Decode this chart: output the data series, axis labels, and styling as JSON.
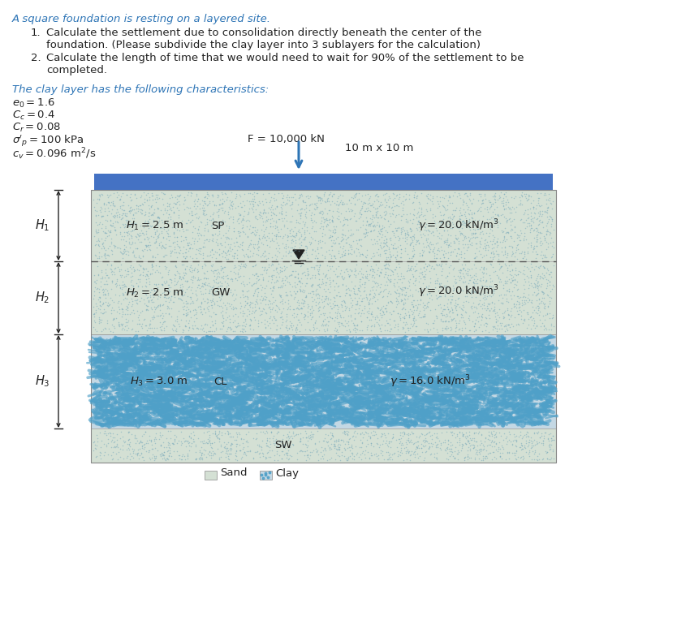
{
  "title_line": "A square foundation is resting on a layered site.",
  "item1": "Calculate the settlement due to consolidation directly beneath the center of the",
  "item1b": "foundation. (Please subdivide the clay layer into 3 sublayers for the calculation)",
  "item2": "Calculate the length of time that we would need to wait for 90% of the settlement to be",
  "item2b": "completed.",
  "clay_header": "The clay layer has the following characteristics:",
  "F_label": "F = 10,000 kN",
  "foundation_label": "10 m x 10 m",
  "SP_label": "SP",
  "GW_label": "GW",
  "CL_label": "CL",
  "SW_label": "SW",
  "H1_label": "H1 = 2.5 m",
  "H2_label": "H2 = 2.5 m",
  "H3_label": "H3 = 3.0 m",
  "gamma1": "y = 20.0 kN/m3",
  "gamma2": "y = 20.0 kN/m3",
  "gamma3": "y = 16.0 kN/m3",
  "sand_legend": "Sand",
  "clay_legend": "Clay",
  "sand_color": "#d8e4d8",
  "clay_color_bg": "#c0d8e8",
  "foundation_color": "#4472c4",
  "text_color_blue": "#2e75b6",
  "text_color_dark": "#222222",
  "bg_color": "#ffffff"
}
